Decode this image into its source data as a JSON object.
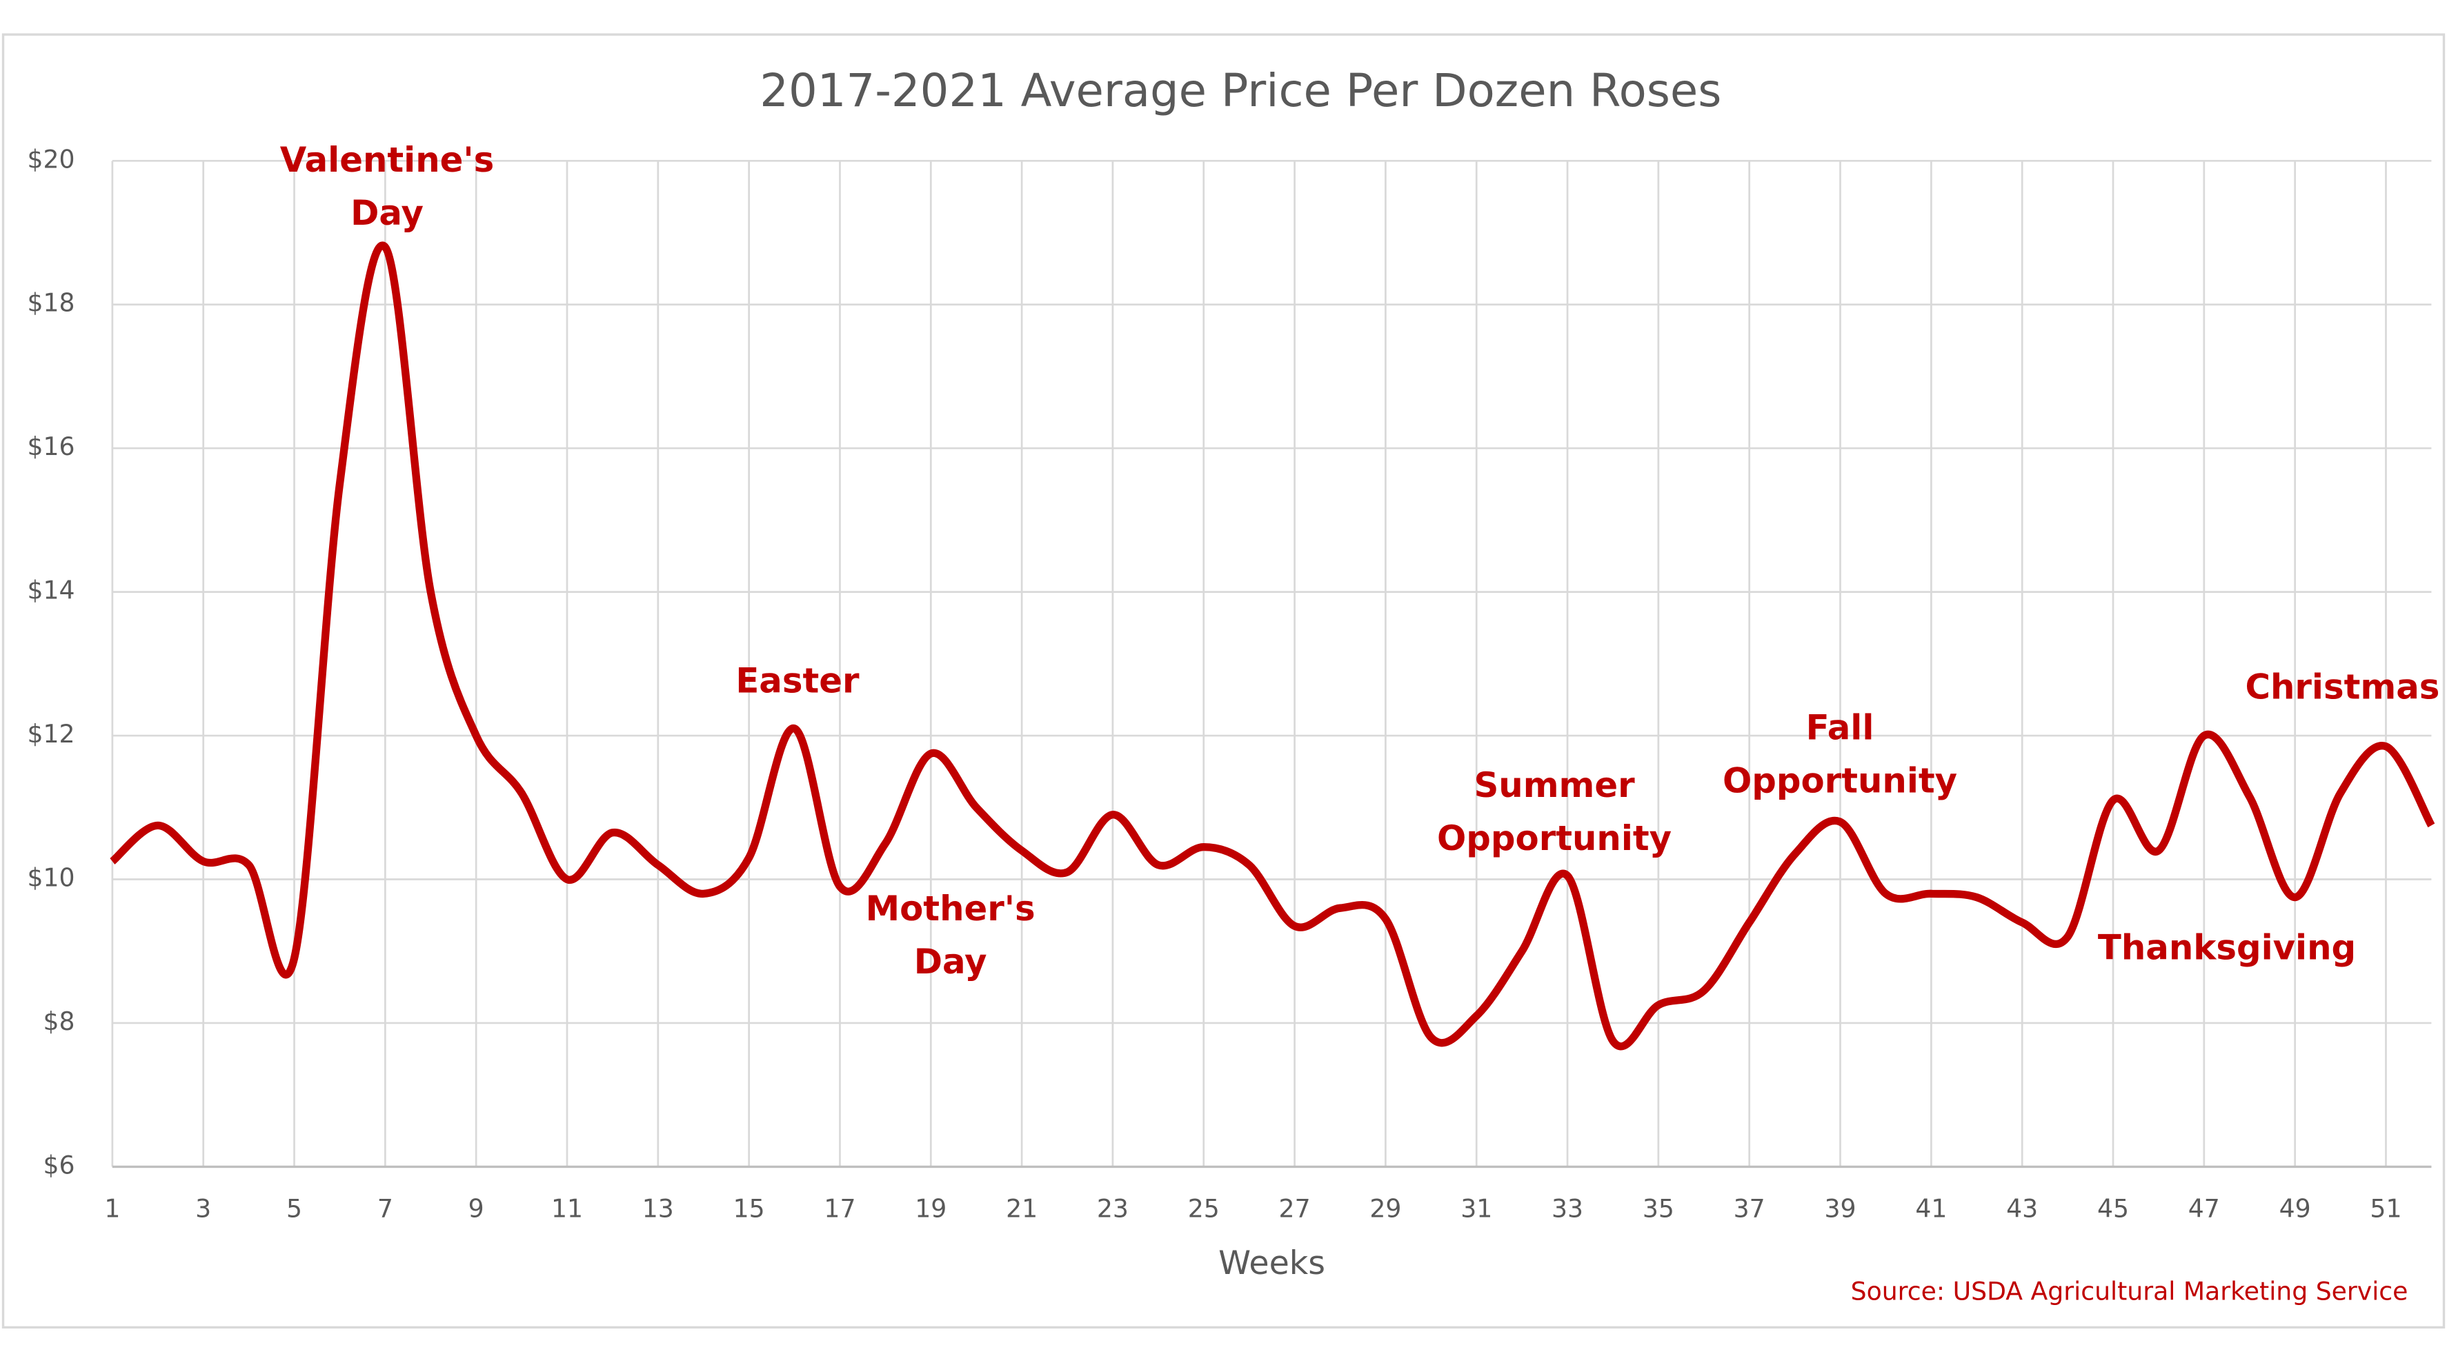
{
  "chart_data": {
    "type": "line",
    "title": "2017-2021 Average Price Per Dozen Roses",
    "x_label": "Weeks",
    "source": "Source: USDA Agricultural Marketing Service",
    "x": [
      1,
      2,
      3,
      4,
      5,
      6,
      7,
      8,
      9,
      10,
      11,
      12,
      13,
      14,
      15,
      16,
      17,
      18,
      19,
      20,
      21,
      22,
      23,
      24,
      25,
      26,
      27,
      28,
      29,
      30,
      31,
      32,
      33,
      34,
      35,
      36,
      37,
      38,
      39,
      40,
      41,
      42,
      43,
      44,
      45,
      46,
      47,
      48,
      49,
      50,
      51,
      52
    ],
    "values": [
      10.25,
      10.75,
      10.25,
      10.2,
      8.9,
      15.5,
      18.8,
      14.0,
      12.0,
      11.2,
      10.0,
      10.65,
      10.2,
      9.8,
      10.3,
      12.1,
      9.9,
      10.5,
      11.75,
      11.0,
      10.4,
      10.1,
      10.9,
      10.2,
      10.45,
      10.2,
      9.35,
      9.6,
      9.45,
      7.8,
      8.1,
      9.0,
      10.05,
      7.75,
      8.25,
      8.45,
      9.4,
      10.35,
      10.8,
      9.8,
      9.8,
      9.75,
      9.4,
      9.2,
      11.1,
      10.4,
      12.0,
      11.15,
      9.75,
      11.2,
      11.85,
      10.75
    ],
    "color": "#c00000",
    "xlim": [
      1,
      52
    ],
    "xticks": [
      1,
      3,
      5,
      7,
      9,
      11,
      13,
      15,
      17,
      19,
      21,
      23,
      25,
      27,
      29,
      31,
      33,
      35,
      37,
      39,
      41,
      43,
      45,
      47,
      49,
      51
    ],
    "ylim": [
      6,
      20
    ],
    "yticks": [
      {
        "value": 6,
        "label": "$6"
      },
      {
        "value": 8,
        "label": "$8"
      },
      {
        "value": 10,
        "label": "$10"
      },
      {
        "value": 12,
        "label": "$12"
      },
      {
        "value": 14,
        "label": "$14"
      },
      {
        "value": 16,
        "label": "$16"
      },
      {
        "value": 18,
        "label": "$18"
      },
      {
        "value": 20,
        "label": "$20"
      }
    ],
    "grid": true,
    "annotations": [
      {
        "lines": [
          "Valentine's",
          "Day"
        ]
      },
      {
        "lines": [
          "Easter"
        ]
      },
      {
        "lines": [
          "Mother's",
          "Day"
        ]
      },
      {
        "lines": [
          "Summer",
          "Opportunity"
        ]
      },
      {
        "lines": [
          "Fall",
          "Opportunity"
        ]
      },
      {
        "lines": [
          "Christmas"
        ]
      },
      {
        "lines": [
          "Thanksgiving"
        ]
      }
    ]
  }
}
